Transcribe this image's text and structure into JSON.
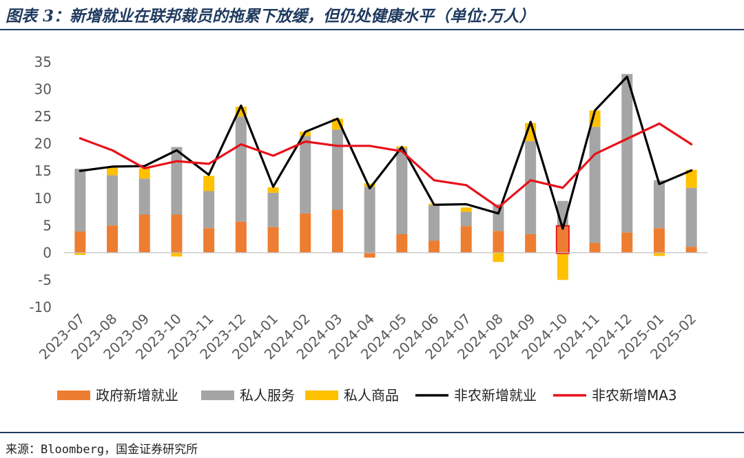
{
  "header": {
    "title": "图表 3：新增就业在联邦裁员的拖累下放缓，但仍处健康水平（单位:万人）"
  },
  "footer": {
    "source": "来源：Bloomberg，国金证券研究所"
  },
  "chart_data": {
    "type": "bar",
    "stacked": true,
    "categories": [
      "2023-07",
      "2023-08",
      "2023-09",
      "2023-10",
      "2023-11",
      "2023-12",
      "2024-01",
      "2024-02",
      "2024-03",
      "2024-04",
      "2024-05",
      "2024-06",
      "2024-07",
      "2024-08",
      "2024-09",
      "2024-10",
      "2024-11",
      "2024-12",
      "2025-01",
      "2025-02"
    ],
    "ylim": [
      -10,
      35
    ],
    "yticks": [
      -10,
      -5,
      0,
      5,
      10,
      15,
      20,
      25,
      30,
      35
    ],
    "series": [
      {
        "name": "政府新增就业",
        "kind": "bar",
        "color": "#ED7D31",
        "values": [
          3.9,
          5.0,
          7.0,
          7.0,
          4.5,
          5.7,
          4.7,
          7.2,
          7.9,
          -0.9,
          3.4,
          2.2,
          4.9,
          4.0,
          3.4,
          4.8,
          1.8,
          3.7,
          4.5,
          1.1
        ]
      },
      {
        "name": "私人服务",
        "kind": "bar",
        "color": "#A5A5A5",
        "values": [
          11.5,
          9.2,
          6.6,
          12.4,
          6.8,
          19.3,
          6.3,
          14.2,
          14.7,
          12.1,
          15.8,
          6.5,
          2.6,
          4.9,
          17.1,
          4.7,
          21.3,
          29.1,
          8.8,
          10.8
        ]
      },
      {
        "name": "私人商品",
        "kind": "bar",
        "color": "#FFC000",
        "values": [
          -0.4,
          1.4,
          1.9,
          -0.7,
          2.8,
          1.8,
          1.0,
          0.8,
          2.0,
          0.6,
          0.3,
          0.3,
          0.8,
          -1.7,
          3.3,
          -5.0,
          3.0,
          0.0,
          -0.6,
          3.3
        ]
      },
      {
        "name": "非农新增就业",
        "kind": "line",
        "color": "#000000",
        "values": [
          15.0,
          15.8,
          15.9,
          18.8,
          14.3,
          27.0,
          12.1,
          22.2,
          24.6,
          11.8,
          19.4,
          8.8,
          8.9,
          7.2,
          24.0,
          4.4,
          26.1,
          32.3,
          12.6,
          15.1
        ]
      },
      {
        "name": "非农新增MA3",
        "kind": "line",
        "color": "#E8111A",
        "values": [
          21.0,
          18.8,
          15.5,
          16.8,
          16.3,
          19.9,
          17.8,
          20.4,
          19.6,
          19.6,
          18.6,
          13.3,
          12.4,
          8.3,
          13.3,
          11.9,
          18.1,
          20.9,
          23.7,
          19.9
        ]
      }
    ],
    "legend": {
      "position": "bottom",
      "items": [
        "政府新增就业",
        "私人服务",
        "私人商品",
        "非农新增就业",
        "非农新增MA3"
      ]
    },
    "highlight": {
      "category": "2024-10",
      "color": "#E8111A"
    },
    "grid": false,
    "xlabel": "",
    "ylabel": ""
  }
}
